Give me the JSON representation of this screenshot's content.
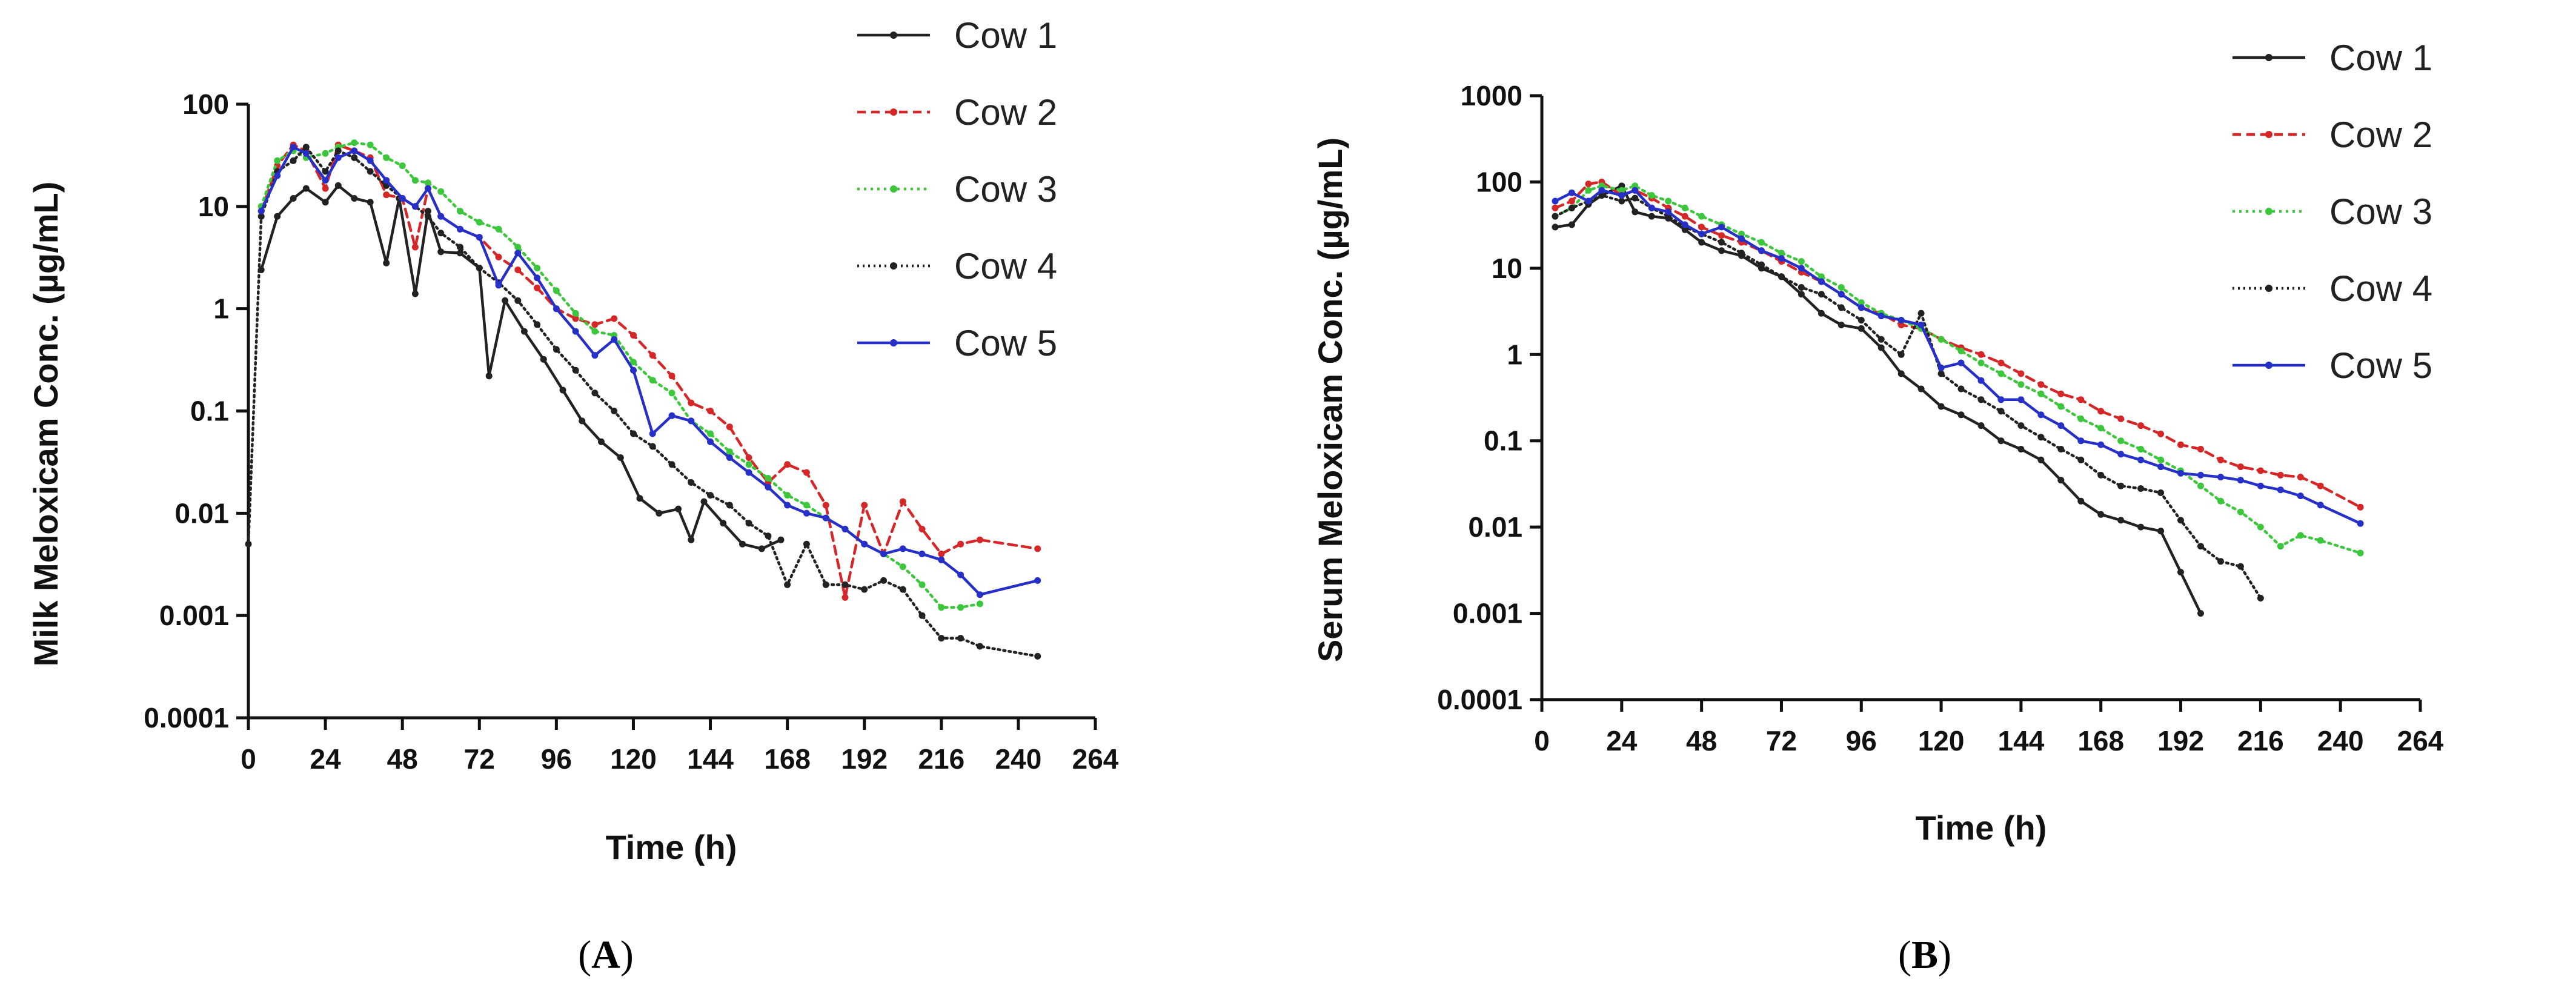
{
  "figure": {
    "panels_labels": [
      "A",
      "B"
    ]
  },
  "chart_data": [
    {
      "type": "line",
      "panel": "A",
      "title": "",
      "xlabel": "Time (h)",
      "ylabel": "Milk Meloxicam Conc. (µg/mL)",
      "yscale": "log",
      "xlim": [
        0,
        264
      ],
      "ylim": [
        0.0001,
        100
      ],
      "xticks": [
        0,
        24,
        48,
        72,
        96,
        120,
        144,
        168,
        192,
        216,
        240,
        264
      ],
      "yticks": [
        0.0001,
        0.001,
        0.01,
        0.1,
        1,
        10,
        100
      ],
      "ytick_labels": [
        "0.0001",
        "0.001",
        "0.01",
        "0.1",
        "1",
        "10",
        "100"
      ],
      "legend_position": "top-right",
      "series": [
        {
          "name": "Cow 1",
          "color": "#222222",
          "dash": "",
          "marker": true,
          "x": [
            4,
            9,
            14,
            18,
            24,
            28,
            33,
            38,
            43,
            47,
            52,
            56,
            60,
            66,
            72,
            75,
            80,
            86,
            92,
            98,
            104,
            110,
            116,
            122,
            128,
            134,
            138,
            142,
            148,
            154,
            160,
            166
          ],
          "y": [
            2.4,
            8,
            12,
            15,
            11,
            16,
            12,
            11,
            2.8,
            12,
            1.4,
            9,
            3.6,
            3.5,
            2.5,
            0.22,
            1.2,
            0.6,
            0.32,
            0.16,
            0.08,
            0.05,
            0.035,
            0.014,
            0.01,
            0.011,
            0.0055,
            0.013,
            0.008,
            0.005,
            0.0045,
            0.0055
          ]
        },
        {
          "name": "Cow 2",
          "color": "#d62728",
          "dash": "14,9",
          "marker": true,
          "x": [
            4,
            9,
            14,
            18,
            24,
            28,
            33,
            38,
            43,
            48,
            52,
            56,
            60,
            66,
            72,
            78,
            84,
            90,
            96,
            102,
            108,
            114,
            120,
            126,
            132,
            138,
            144,
            150,
            156,
            162,
            168,
            174,
            180,
            186,
            192,
            198,
            204,
            210,
            216,
            222,
            228,
            246
          ],
          "y": [
            9,
            25,
            40,
            35,
            15,
            40,
            35,
            30,
            13,
            12,
            4,
            15,
            8,
            6,
            5,
            3.2,
            2.4,
            1.6,
            1.0,
            0.8,
            0.7,
            0.8,
            0.55,
            0.35,
            0.22,
            0.12,
            0.1,
            0.07,
            0.035,
            0.02,
            0.03,
            0.025,
            0.012,
            0.0015,
            0.012,
            0.004,
            0.013,
            0.007,
            0.004,
            0.005,
            0.0055,
            0.0045
          ]
        },
        {
          "name": "Cow 3",
          "color": "#3cc63c",
          "dash": "4,7",
          "marker": true,
          "x": [
            4,
            9,
            14,
            18,
            24,
            28,
            33,
            38,
            43,
            48,
            52,
            56,
            60,
            66,
            72,
            78,
            84,
            90,
            96,
            102,
            108,
            114,
            120,
            126,
            132,
            138,
            144,
            150,
            156,
            162,
            168,
            174,
            180,
            186,
            192,
            198,
            204,
            210,
            216,
            222,
            228
          ],
          "y": [
            10,
            28,
            35,
            30,
            33,
            38,
            42,
            40,
            30,
            25,
            18,
            17,
            14,
            9,
            7,
            6,
            4,
            2.5,
            1.5,
            0.9,
            0.6,
            0.55,
            0.3,
            0.2,
            0.15,
            0.08,
            0.06,
            0.04,
            0.03,
            0.022,
            0.015,
            0.012,
            0.009,
            0.007,
            0.005,
            0.004,
            0.003,
            0.002,
            0.0012,
            0.0012,
            0.0013
          ]
        },
        {
          "name": "Cow 4",
          "color": "#222222",
          "dash": "3,6",
          "marker": true,
          "x": [
            0,
            4,
            9,
            14,
            18,
            24,
            28,
            33,
            38,
            43,
            48,
            52,
            56,
            60,
            66,
            72,
            78,
            84,
            90,
            96,
            102,
            108,
            114,
            120,
            126,
            132,
            138,
            144,
            150,
            156,
            162,
            168,
            174,
            180,
            186,
            192,
            198,
            204,
            210,
            216,
            222,
            228,
            246
          ],
          "y": [
            0.005,
            8,
            22,
            28,
            38,
            22,
            35,
            30,
            22,
            16,
            12,
            10,
            8,
            5.5,
            4,
            2.5,
            1.8,
            1.2,
            0.7,
            0.4,
            0.25,
            0.15,
            0.1,
            0.06,
            0.045,
            0.03,
            0.02,
            0.015,
            0.012,
            0.008,
            0.006,
            0.002,
            0.005,
            0.002,
            0.002,
            0.0018,
            0.0022,
            0.0018,
            0.001,
            0.0006,
            0.0006,
            0.0005,
            0.0004
          ]
        },
        {
          "name": "Cow 5",
          "color": "#2630c8",
          "dash": "",
          "marker": true,
          "x": [
            4,
            9,
            14,
            18,
            24,
            28,
            33,
            38,
            43,
            48,
            52,
            56,
            60,
            66,
            72,
            78,
            84,
            90,
            96,
            102,
            108,
            114,
            120,
            126,
            132,
            138,
            144,
            150,
            156,
            162,
            168,
            174,
            180,
            186,
            192,
            198,
            204,
            210,
            216,
            222,
            228,
            246
          ],
          "y": [
            9,
            20,
            38,
            33,
            18,
            30,
            35,
            28,
            18,
            12,
            10,
            15,
            8,
            6,
            5,
            1.7,
            3.5,
            2.0,
            1.0,
            0.6,
            0.35,
            0.5,
            0.25,
            0.06,
            0.09,
            0.08,
            0.05,
            0.035,
            0.025,
            0.018,
            0.012,
            0.01,
            0.009,
            0.007,
            0.005,
            0.004,
            0.0045,
            0.004,
            0.0035,
            0.0025,
            0.0016,
            0.0022
          ]
        }
      ]
    },
    {
      "type": "line",
      "panel": "B",
      "title": "",
      "xlabel": "Time (h)",
      "ylabel": "Serum Meloxicam Conc. (µg/mL)",
      "yscale": "log",
      "xlim": [
        0,
        264
      ],
      "ylim": [
        0.0001,
        1000
      ],
      "xticks": [
        0,
        24,
        48,
        72,
        96,
        120,
        144,
        168,
        192,
        216,
        240,
        264
      ],
      "yticks": [
        0.0001,
        0.001,
        0.01,
        0.1,
        1,
        10,
        100,
        1000
      ],
      "ytick_labels": [
        "0.0001",
        "0.001",
        "0.01",
        "0.1",
        "1",
        "10",
        "100",
        "1000"
      ],
      "legend_position": "top-right",
      "series": [
        {
          "name": "Cow 1",
          "color": "#222222",
          "dash": "",
          "marker": true,
          "x": [
            4,
            9,
            14,
            18,
            24,
            28,
            33,
            38,
            43,
            48,
            54,
            60,
            66,
            72,
            78,
            84,
            90,
            96,
            102,
            108,
            114,
            120,
            126,
            132,
            138,
            144,
            150,
            156,
            162,
            168,
            174,
            180,
            186,
            192,
            198
          ],
          "y": [
            30,
            32,
            55,
            70,
            90,
            45,
            40,
            38,
            28,
            20,
            16,
            14,
            10,
            8,
            5,
            3,
            2.2,
            2.0,
            1.2,
            0.6,
            0.4,
            0.25,
            0.2,
            0.15,
            0.1,
            0.08,
            0.06,
            0.035,
            0.02,
            0.014,
            0.012,
            0.01,
            0.009,
            0.003,
            0.001
          ]
        },
        {
          "name": "Cow 2",
          "color": "#d62728",
          "dash": "14,9",
          "marker": true,
          "x": [
            4,
            9,
            14,
            18,
            24,
            28,
            33,
            38,
            43,
            48,
            54,
            60,
            66,
            72,
            78,
            84,
            90,
            96,
            102,
            108,
            114,
            120,
            126,
            132,
            138,
            144,
            150,
            156,
            162,
            168,
            174,
            180,
            186,
            192,
            198,
            204,
            210,
            216,
            222,
            228,
            234,
            246
          ],
          "y": [
            50,
            60,
            95,
            100,
            70,
            80,
            65,
            50,
            40,
            30,
            24,
            20,
            16,
            12,
            9,
            7,
            5,
            3.5,
            3.0,
            2.2,
            2.0,
            1.5,
            1.2,
            1.0,
            0.8,
            0.6,
            0.45,
            0.35,
            0.3,
            0.22,
            0.18,
            0.15,
            0.12,
            0.09,
            0.08,
            0.06,
            0.05,
            0.045,
            0.04,
            0.038,
            0.03,
            0.017
          ]
        },
        {
          "name": "Cow 3",
          "color": "#3cc63c",
          "dash": "4,7",
          "marker": true,
          "x": [
            4,
            9,
            14,
            18,
            24,
            28,
            33,
            38,
            43,
            48,
            54,
            60,
            66,
            72,
            78,
            84,
            90,
            96,
            102,
            108,
            114,
            120,
            126,
            132,
            138,
            144,
            150,
            156,
            162,
            168,
            174,
            180,
            186,
            192,
            198,
            204,
            210,
            216,
            222,
            228,
            234,
            246
          ],
          "y": [
            40,
            50,
            80,
            90,
            80,
            90,
            70,
            60,
            50,
            40,
            32,
            25,
            20,
            15,
            12,
            8,
            6,
            4,
            3,
            2.5,
            2.0,
            1.5,
            1.1,
            0.8,
            0.6,
            0.45,
            0.35,
            0.25,
            0.18,
            0.14,
            0.1,
            0.08,
            0.06,
            0.045,
            0.03,
            0.02,
            0.015,
            0.01,
            0.006,
            0.008,
            0.007,
            0.005
          ]
        },
        {
          "name": "Cow 4",
          "color": "#222222",
          "dash": "3,6",
          "marker": true,
          "x": [
            4,
            9,
            14,
            18,
            24,
            28,
            33,
            38,
            43,
            48,
            54,
            60,
            66,
            72,
            78,
            84,
            90,
            96,
            102,
            108,
            114,
            120,
            126,
            132,
            138,
            144,
            150,
            156,
            162,
            168,
            174,
            180,
            186,
            192,
            198,
            204,
            210,
            216
          ],
          "y": [
            40,
            50,
            60,
            70,
            60,
            65,
            50,
            40,
            30,
            25,
            20,
            15,
            11,
            8,
            6,
            5,
            3.5,
            2.5,
            1.5,
            1.0,
            3.0,
            0.6,
            0.4,
            0.3,
            0.22,
            0.15,
            0.11,
            0.08,
            0.06,
            0.04,
            0.03,
            0.028,
            0.025,
            0.012,
            0.006,
            0.004,
            0.0035,
            0.0015
          ]
        },
        {
          "name": "Cow 5",
          "color": "#2630c8",
          "dash": "",
          "marker": true,
          "x": [
            4,
            9,
            14,
            18,
            24,
            28,
            33,
            38,
            43,
            48,
            54,
            60,
            66,
            72,
            78,
            84,
            90,
            96,
            102,
            108,
            114,
            120,
            126,
            132,
            138,
            144,
            150,
            156,
            162,
            168,
            174,
            180,
            186,
            192,
            198,
            204,
            210,
            216,
            222,
            228,
            234,
            246
          ],
          "y": [
            60,
            75,
            60,
            80,
            70,
            80,
            50,
            45,
            32,
            25,
            30,
            22,
            16,
            13,
            10,
            7,
            5,
            3.5,
            2.8,
            2.5,
            2.2,
            0.7,
            0.8,
            0.5,
            0.3,
            0.3,
            0.2,
            0.15,
            0.1,
            0.09,
            0.07,
            0.06,
            0.05,
            0.042,
            0.04,
            0.038,
            0.035,
            0.03,
            0.027,
            0.023,
            0.018,
            0.011
          ]
        }
      ]
    }
  ]
}
